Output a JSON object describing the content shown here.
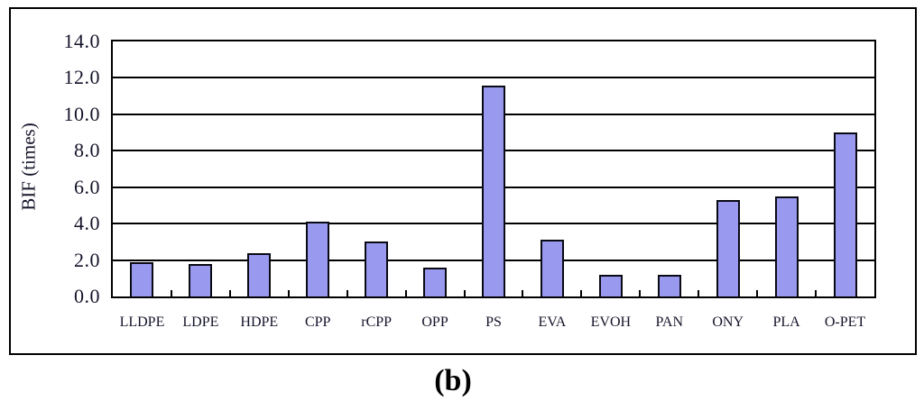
{
  "figure": {
    "caption": "(b)"
  },
  "chart_data": {
    "type": "bar",
    "title": "",
    "categories": [
      "LLDPE",
      "LDPE",
      "HDPE",
      "CPP",
      "rCPP",
      "OPP",
      "PS",
      "EVA",
      "EVOH",
      "PAN",
      "ONY",
      "PLA",
      "O-PET"
    ],
    "values": [
      1.9,
      1.8,
      2.4,
      4.1,
      3.0,
      1.6,
      11.6,
      3.1,
      1.2,
      1.2,
      5.3,
      5.5,
      9.0
    ],
    "xlabel": "",
    "ylabel": "BIF (times)",
    "ylim": [
      0,
      14
    ],
    "ytick_step": 2,
    "ytick_labels": [
      "0.0",
      "2.0",
      "4.0",
      "6.0",
      "8.0",
      "10.0",
      "12.0",
      "14.0"
    ],
    "grid": true,
    "legend": false,
    "colors": {
      "bar_fill": "#9999f0",
      "bar_border": "#0a0a14",
      "axis": "#000000",
      "text": "#14142a"
    }
  }
}
